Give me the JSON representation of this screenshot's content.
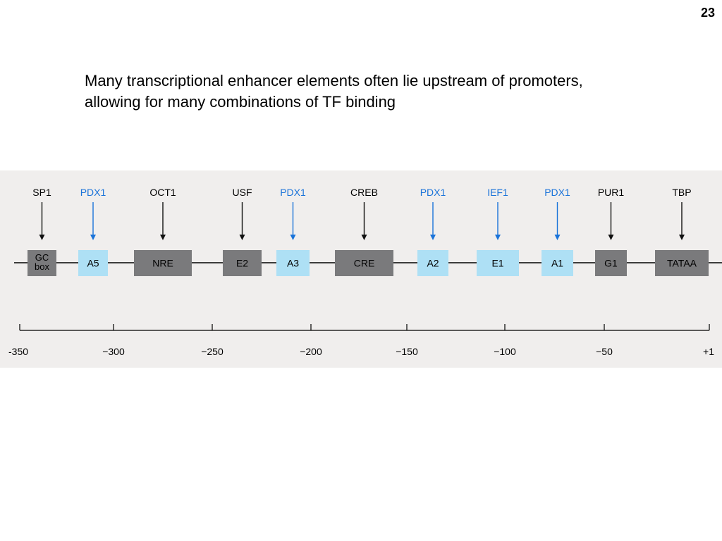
{
  "slide": {
    "number": "23",
    "caption_lines": [
      "Many transcriptional enhancer elements often lie upstream of promoters,",
      "allowing for many combinations of TF binding"
    ]
  },
  "colors": {
    "blue_factor_text": "#1a73d9",
    "blue_box_fill": "#aee0f5",
    "gray_box_fill": "#7a7a7c",
    "arrow_black": "#111111",
    "arrow_blue": "#1a73d9",
    "figure_background": "#f0eeed"
  },
  "diagram": {
    "factors": [
      {
        "factor": "SP1",
        "element_lines": [
          "GC",
          "box"
        ],
        "style": "gray"
      },
      {
        "factor": "PDX1",
        "element_lines": [
          "A5"
        ],
        "style": "blue"
      },
      {
        "factor": "OCT1",
        "element_lines": [
          "NRE"
        ],
        "style": "gray"
      },
      {
        "factor": "USF",
        "element_lines": [
          "E2"
        ],
        "style": "gray"
      },
      {
        "factor": "PDX1",
        "element_lines": [
          "A3"
        ],
        "style": "blue"
      },
      {
        "factor": "CREB",
        "element_lines": [
          "CRE"
        ],
        "style": "gray"
      },
      {
        "factor": "PDX1",
        "element_lines": [
          "A2"
        ],
        "style": "blue"
      },
      {
        "factor": "IEF1",
        "element_lines": [
          "E1"
        ],
        "style": "blue"
      },
      {
        "factor": "PDX1",
        "element_lines": [
          "A1"
        ],
        "style": "blue"
      },
      {
        "factor": "PUR1",
        "element_lines": [
          "G1"
        ],
        "style": "gray"
      },
      {
        "factor": "TBP",
        "element_lines": [
          "TATAA"
        ],
        "style": "gray"
      }
    ],
    "scale": {
      "ticks": [
        "-350",
        "−300",
        "−250",
        "−200",
        "−150",
        "−100",
        "−50",
        "+1"
      ]
    }
  }
}
